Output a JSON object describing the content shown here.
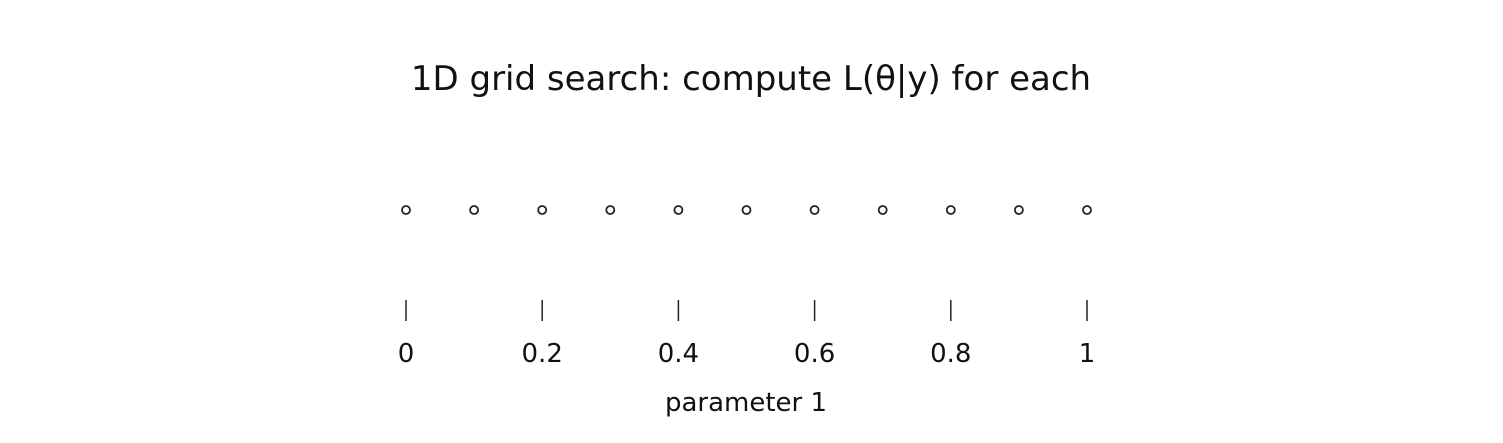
{
  "chart_data": {
    "type": "scatter",
    "title": "1D grid search: compute L(θ|y) for each",
    "xlabel": "parameter 1",
    "ylabel": "",
    "xlim": [
      0,
      1
    ],
    "x": [
      0,
      0.1,
      0.2,
      0.3,
      0.4,
      0.5,
      0.6,
      0.7,
      0.8,
      0.9,
      1
    ],
    "xticks": [
      0,
      0.2,
      0.4,
      0.6,
      0.8,
      1
    ],
    "xtick_labels": [
      "0",
      "0.2",
      "0.4",
      "0.6",
      "0.8",
      "1"
    ],
    "grid": false,
    "legend": "none",
    "marker": "open-circle",
    "color": "#222222"
  }
}
